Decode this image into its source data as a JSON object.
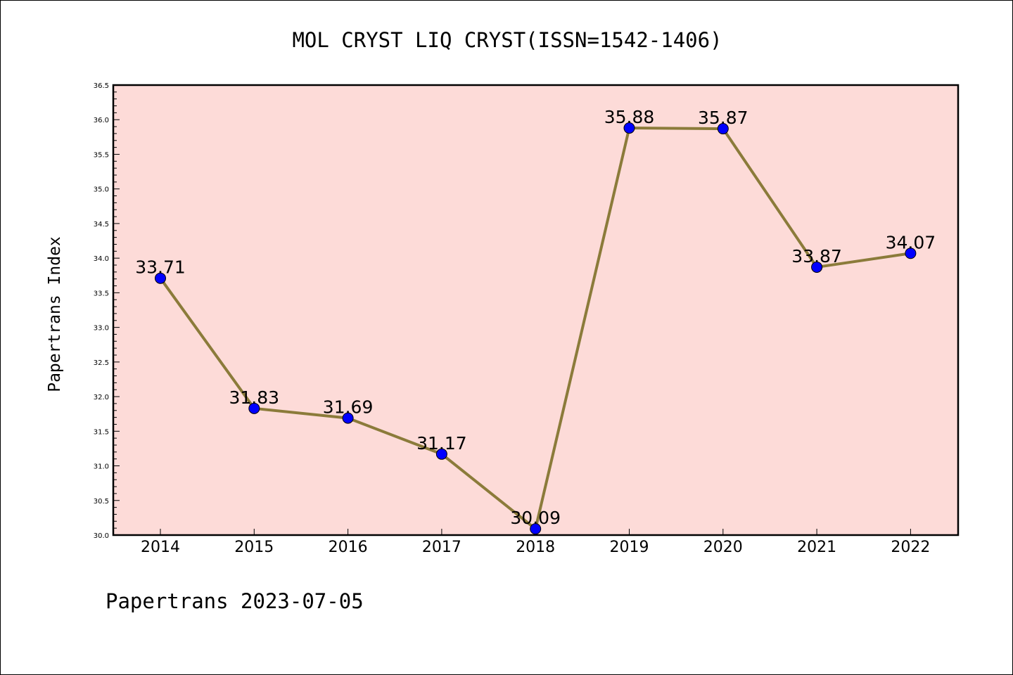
{
  "chart_data": {
    "type": "line",
    "title": "MOL CRYST LIQ CRYST(ISSN=1542-1406)",
    "ylabel": "Papertrans Index",
    "xlabel": "",
    "footer": "Papertrans 2023-07-05",
    "categories": [
      "2014",
      "2015",
      "2016",
      "2017",
      "2018",
      "2019",
      "2020",
      "2021",
      "2022"
    ],
    "series": [
      {
        "values": [
          33.71,
          31.83,
          31.69,
          31.17,
          30.09,
          35.88,
          35.87,
          33.87,
          34.07
        ],
        "data_labels": [
          "33.71",
          "31.83",
          "31.69",
          "31.17",
          "30.09",
          "35.88",
          "35.87",
          "33.87",
          "34.07"
        ]
      }
    ],
    "ylim": [
      30.0,
      36.5
    ],
    "yticks": [
      "30.0",
      "30.5",
      "31.0",
      "31.5",
      "32.0",
      "32.5",
      "33.0",
      "33.5",
      "34.0",
      "34.5",
      "35.0",
      "35.5",
      "36.0",
      "36.5"
    ],
    "grid": false,
    "colors": {
      "plot_background": "#fddbd8",
      "line": "#8b7b3a",
      "marker": "#0000ff",
      "marker_edge": "#000000"
    }
  }
}
